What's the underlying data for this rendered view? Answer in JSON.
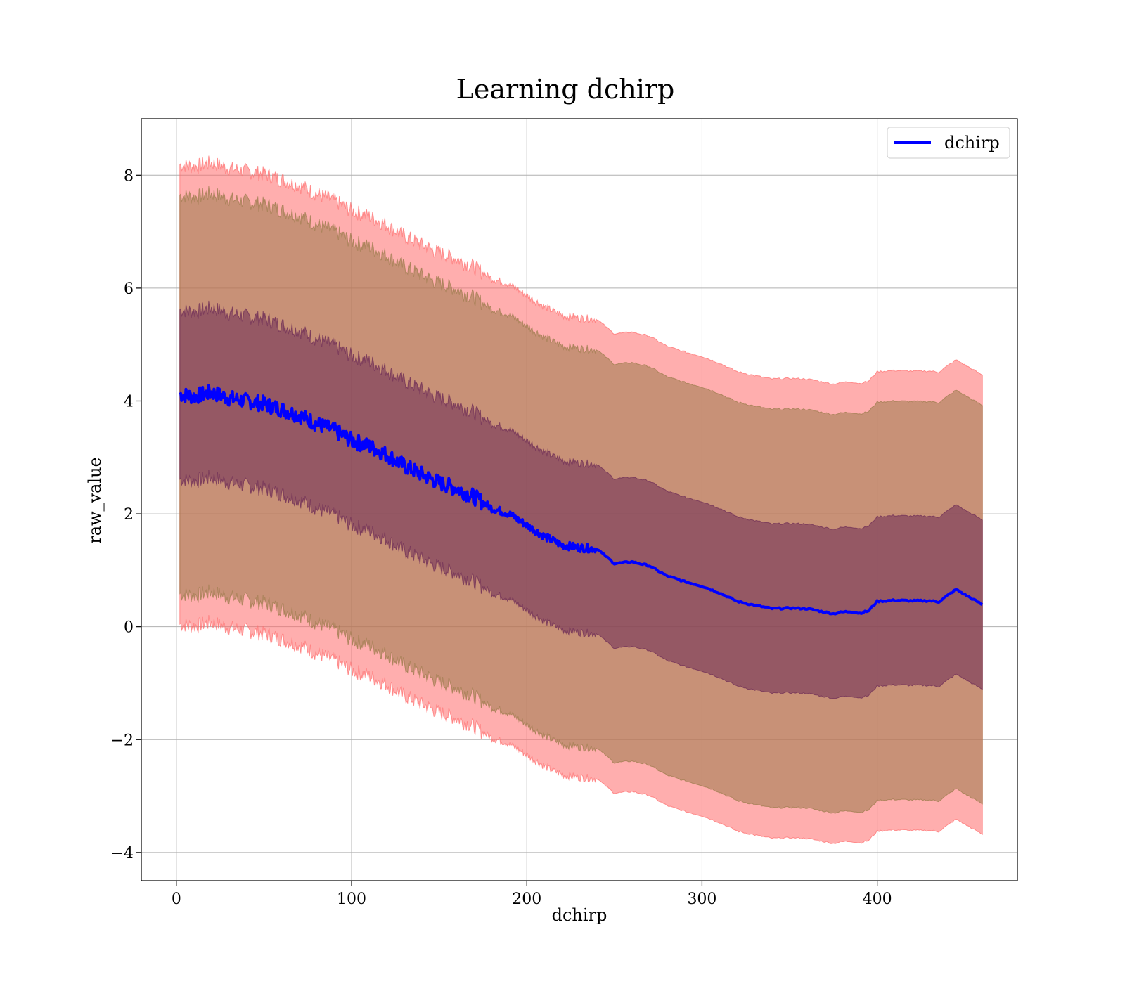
{
  "chart_data": {
    "type": "line",
    "title": "Learning dchirp",
    "xlabel": "dchirp",
    "ylabel": "raw_value",
    "xlim": [
      -20,
      480
    ],
    "ylim": [
      -4.5,
      9.0
    ],
    "xticks": [
      0,
      100,
      200,
      300,
      400
    ],
    "yticks": [
      -4,
      -2,
      0,
      2,
      4,
      6,
      8
    ],
    "xtick_labels": [
      "0",
      "100",
      "200",
      "300",
      "400"
    ],
    "ytick_labels": [
      "−4",
      "−2",
      "0",
      "2",
      "4",
      "6",
      "8"
    ],
    "grid": true,
    "legend": {
      "position": "top-right",
      "entries": [
        "dchirp"
      ]
    },
    "colors": {
      "line": "#0000ff",
      "band3": "#ff6b6b",
      "band2": "#9a7a4a",
      "band1": "#6b2a55"
    },
    "band_widths": {
      "band1": 1.5,
      "band2": 3.53,
      "band3": 4.07
    },
    "series": [
      {
        "name": "dchirp",
        "x": [
          2,
          10,
          20,
          30,
          40,
          50,
          60,
          70,
          80,
          90,
          100,
          110,
          120,
          130,
          140,
          150,
          160,
          170,
          180,
          190,
          200,
          210,
          220,
          230,
          240,
          250,
          260,
          270,
          280,
          290,
          300,
          310,
          320,
          330,
          340,
          350,
          360,
          370,
          375,
          380,
          385,
          390,
          395,
          400,
          410,
          420,
          430,
          435,
          445,
          460
        ],
        "y": [
          4.12,
          4.08,
          4.15,
          4.05,
          4.0,
          3.95,
          3.85,
          3.75,
          3.6,
          3.48,
          3.3,
          3.2,
          3.05,
          2.85,
          2.7,
          2.55,
          2.45,
          2.3,
          2.1,
          2.0,
          1.8,
          1.6,
          1.45,
          1.4,
          1.38,
          1.12,
          1.15,
          1.08,
          0.9,
          0.8,
          0.72,
          0.6,
          0.45,
          0.38,
          0.32,
          0.33,
          0.32,
          0.26,
          0.23,
          0.26,
          0.27,
          0.24,
          0.28,
          0.45,
          0.47,
          0.46,
          0.46,
          0.44,
          0.66,
          0.39
        ]
      }
    ]
  }
}
